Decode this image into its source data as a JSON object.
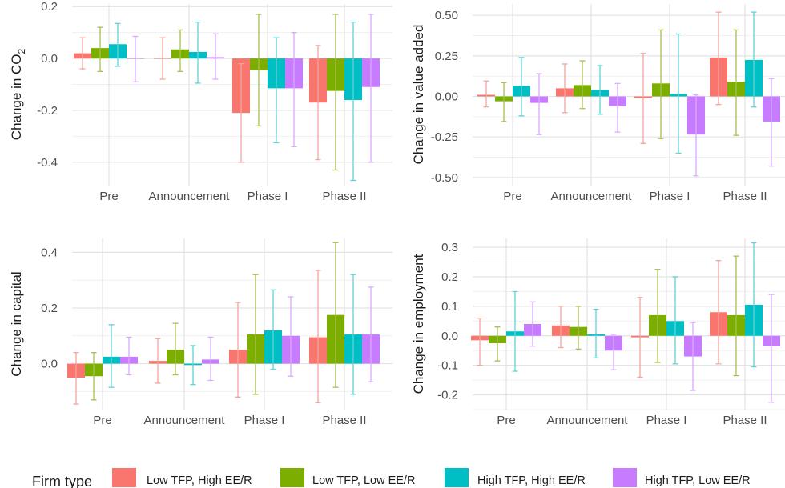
{
  "chart_data": [
    {
      "type": "bar",
      "panel": "co2",
      "ylabel_main": "Change in CO",
      "ylabel_sub": "2",
      "categories": [
        "Pre",
        "Announcement",
        "Phase I",
        "Phase II"
      ],
      "ylim": [
        -0.49,
        0.21
      ],
      "yticks": [
        -0.4,
        -0.2,
        0.0,
        0.2
      ],
      "ytick_labels": [
        "-0.4",
        "-0.2",
        "0.0",
        "0.2"
      ],
      "grid": true,
      "series": [
        {
          "values": [
            0.02,
            0.0,
            -0.21,
            -0.17
          ],
          "lower": [
            -0.04,
            -0.08,
            -0.4,
            -0.39
          ],
          "upper": [
            0.08,
            0.08,
            -0.02,
            0.05
          ]
        },
        {
          "values": [
            0.04,
            0.035,
            -0.045,
            -0.125
          ],
          "lower": [
            -0.05,
            -0.05,
            -0.26,
            -0.43
          ],
          "upper": [
            0.12,
            0.11,
            0.17,
            0.17
          ]
        },
        {
          "values": [
            0.055,
            0.025,
            -0.115,
            -0.16
          ],
          "lower": [
            -0.03,
            -0.095,
            -0.325,
            -0.47
          ],
          "upper": [
            0.135,
            0.14,
            0.08,
            0.14
          ]
        },
        {
          "values": [
            0.0,
            0.005,
            -0.115,
            -0.11
          ],
          "lower": [
            -0.09,
            -0.08,
            -0.34,
            -0.4
          ],
          "upper": [
            0.085,
            0.095,
            0.1,
            0.17
          ]
        }
      ]
    },
    {
      "type": "bar",
      "panel": "value_added",
      "ylabel_main": "Change in value added",
      "ylabel_sub": "",
      "categories": [
        "Pre",
        "Announcement",
        "Phase I",
        "Phase II"
      ],
      "ylim": [
        -0.55,
        0.57
      ],
      "yticks": [
        -0.5,
        -0.25,
        0.0,
        0.25,
        0.5
      ],
      "ytick_labels": [
        "-0.50",
        "-0.25",
        "0.00",
        "0.25",
        "0.50"
      ],
      "grid": true,
      "series": [
        {
          "values": [
            0.01,
            0.05,
            -0.01,
            0.24
          ],
          "lower": [
            -0.065,
            -0.1,
            -0.29,
            -0.05
          ],
          "upper": [
            0.095,
            0.2,
            0.265,
            0.52
          ]
        },
        {
          "values": [
            -0.03,
            0.07,
            0.08,
            0.09
          ],
          "lower": [
            -0.155,
            -0.075,
            -0.26,
            -0.24
          ],
          "upper": [
            0.085,
            0.22,
            0.41,
            0.41
          ]
        },
        {
          "values": [
            0.065,
            0.04,
            0.015,
            0.225
          ],
          "lower": [
            -0.12,
            -0.11,
            -0.35,
            -0.065
          ],
          "upper": [
            0.24,
            0.19,
            0.385,
            0.52
          ]
        },
        {
          "values": [
            -0.04,
            -0.06,
            -0.235,
            -0.155
          ],
          "lower": [
            -0.235,
            -0.22,
            -0.49,
            -0.43
          ],
          "upper": [
            0.14,
            0.08,
            0.01,
            0.11
          ]
        }
      ]
    },
    {
      "type": "bar",
      "panel": "capital",
      "ylabel_main": "Change in capital",
      "ylabel_sub": "",
      "categories": [
        "Pre",
        "Announcement",
        "Phase I",
        "Phase II"
      ],
      "ylim": [
        -0.165,
        0.45
      ],
      "yticks": [
        0.0,
        0.2,
        0.4
      ],
      "ytick_labels": [
        "0.0",
        "0.2",
        "0.4"
      ],
      "grid": true,
      "series": [
        {
          "values": [
            -0.05,
            0.01,
            0.05,
            0.095
          ],
          "lower": [
            -0.145,
            -0.07,
            -0.12,
            -0.14
          ],
          "upper": [
            0.04,
            0.09,
            0.22,
            0.335
          ]
        },
        {
          "values": [
            -0.045,
            0.05,
            0.105,
            0.175
          ],
          "lower": [
            -0.13,
            -0.04,
            -0.11,
            -0.085
          ],
          "upper": [
            0.04,
            0.145,
            0.32,
            0.435
          ]
        },
        {
          "values": [
            0.025,
            -0.005,
            0.12,
            0.105
          ],
          "lower": [
            -0.085,
            -0.075,
            -0.02,
            -0.11
          ],
          "upper": [
            0.14,
            0.065,
            0.265,
            0.32
          ]
        },
        {
          "values": [
            0.025,
            0.015,
            0.1,
            0.105
          ],
          "lower": [
            -0.04,
            -0.06,
            -0.045,
            -0.065
          ],
          "upper": [
            0.095,
            0.095,
            0.24,
            0.275
          ]
        }
      ]
    },
    {
      "type": "bar",
      "panel": "employment",
      "ylabel_main": "Change in employment",
      "ylabel_sub": "",
      "categories": [
        "Pre",
        "Announcement",
        "Phase I",
        "Phase II"
      ],
      "ylim": [
        -0.25,
        0.33
      ],
      "yticks": [
        -0.2,
        -0.1,
        0.0,
        0.1,
        0.2,
        0.3
      ],
      "ytick_labels": [
        "-0.2",
        "-0.1",
        "0.0",
        "0.1",
        "0.2",
        "0.3"
      ],
      "grid": true,
      "series": [
        {
          "values": [
            -0.015,
            0.035,
            -0.005,
            0.08
          ],
          "lower": [
            -0.1,
            -0.04,
            -0.14,
            -0.095
          ],
          "upper": [
            0.06,
            0.1,
            0.13,
            0.255
          ]
        },
        {
          "values": [
            -0.025,
            0.03,
            0.07,
            0.07
          ],
          "lower": [
            -0.085,
            -0.045,
            -0.09,
            -0.135
          ],
          "upper": [
            0.03,
            0.1,
            0.225,
            0.27
          ]
        },
        {
          "values": [
            0.015,
            0.005,
            0.05,
            0.105
          ],
          "lower": [
            -0.12,
            -0.075,
            -0.095,
            -0.105
          ],
          "upper": [
            0.15,
            0.09,
            0.2,
            0.315
          ]
        },
        {
          "values": [
            0.04,
            -0.05,
            -0.07,
            -0.035
          ],
          "lower": [
            -0.035,
            -0.115,
            -0.185,
            -0.225
          ],
          "upper": [
            0.115,
            0.005,
            0.045,
            0.14
          ]
        }
      ]
    }
  ],
  "legend": {
    "title": "Firm type",
    "placement": "bottom",
    "entries": [
      {
        "label": "Low TFP, High EE/R",
        "color": "#F8766D"
      },
      {
        "label": "Low TFP, Low EE/R",
        "color": "#7CAE00"
      },
      {
        "label": "High TFP, High EE/R",
        "color": "#00BFC4"
      },
      {
        "label": "High TFP, Low EE/R",
        "color": "#C77CFF"
      }
    ]
  }
}
